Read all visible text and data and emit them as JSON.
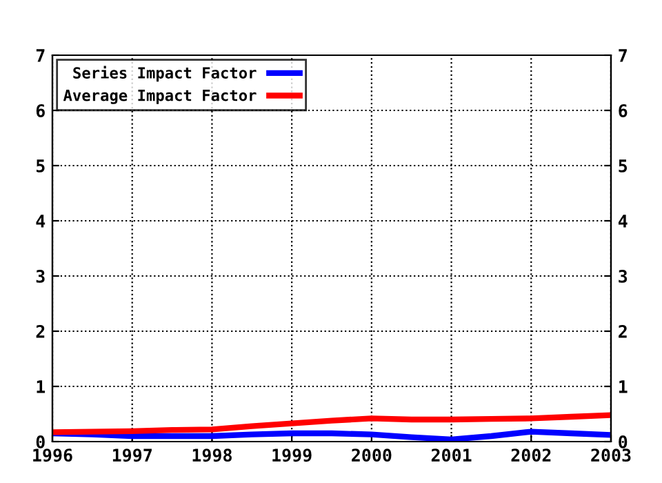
{
  "chart_data": {
    "type": "line",
    "x": [
      1996,
      1996.5,
      1997,
      1997.5,
      1998,
      1998.5,
      1999,
      1999.5,
      2000,
      2000.5,
      2001,
      2001.5,
      2002,
      2002.5,
      2003
    ],
    "series": [
      {
        "name": "Series Impact Factor",
        "color": "#0000ff",
        "values": [
          0.15,
          0.13,
          0.1,
          0.1,
          0.1,
          0.13,
          0.15,
          0.15,
          0.13,
          0.08,
          0.04,
          0.1,
          0.18,
          0.15,
          0.12
        ]
      },
      {
        "name": "Average Impact Factor",
        "color": "#ff0000",
        "values": [
          0.17,
          0.18,
          0.19,
          0.21,
          0.22,
          0.28,
          0.33,
          0.38,
          0.42,
          0.4,
          0.4,
          0.41,
          0.42,
          0.45,
          0.48
        ]
      }
    ],
    "xlim": [
      1996,
      2003
    ],
    "xticks": [
      1996,
      1997,
      1998,
      1999,
      2000,
      2001,
      2002,
      2003
    ],
    "ylim": [
      0,
      7
    ],
    "yticks": [
      0,
      1,
      2,
      3,
      4,
      5,
      6,
      7
    ],
    "y2lim": [
      0,
      7
    ],
    "y2ticks": [
      0,
      1,
      2,
      3,
      4,
      5,
      6,
      7
    ],
    "grid": true,
    "legend": "top left",
    "marker": "none",
    "line_style": "solid"
  }
}
